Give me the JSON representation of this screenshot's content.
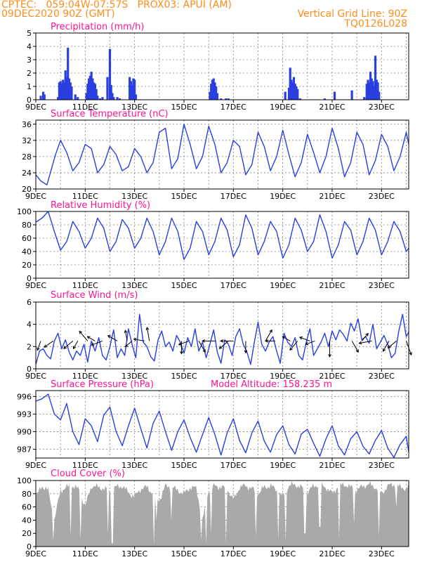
{
  "header": {
    "line1": "CPTEC:   059:04W-07:57S   PROX03: APUI (AM)",
    "line2": "09DEC2020 90Z (GMT)",
    "vgrid": "Vertical Grid Line: 90Z",
    "code": "TQ0126L028"
  },
  "colors": {
    "series": "#2a3fe0",
    "cloud": "#a9a9a9",
    "title": "#ff1493",
    "header": "#ff8c1a",
    "axis": "#000000",
    "grid": "#808080"
  },
  "x_ticks": [
    "9DEC",
    "11DEC",
    "13DEC",
    "15DEC",
    "17DEC",
    "19DEC",
    "21DEC",
    "23DEC"
  ],
  "x_tick_days": [
    9,
    11,
    13,
    15,
    17,
    19,
    21,
    23
  ],
  "x_range": [
    9,
    24.1
  ],
  "chart_data": [
    {
      "id": "precip",
      "type": "bar",
      "title": "Precipitation (mm/h)",
      "ylim": [
        0,
        5
      ],
      "yticks": [
        0,
        1,
        2,
        3,
        4,
        5
      ],
      "grid": true,
      "x": [
        9.2,
        9.3,
        9.35,
        9.9,
        9.95,
        10.0,
        10.05,
        10.1,
        10.15,
        10.2,
        10.25,
        10.3,
        10.35,
        10.4,
        10.45,
        10.6,
        10.7,
        11.05,
        11.1,
        11.15,
        11.2,
        11.25,
        11.3,
        11.35,
        11.4,
        11.45,
        11.5,
        11.6,
        11.7,
        11.9,
        12.0,
        12.05,
        12.1,
        12.15,
        12.3,
        12.4,
        12.8,
        12.85,
        12.9,
        12.95,
        13.0,
        13.05,
        16.05,
        16.1,
        16.15,
        16.2,
        16.25,
        16.3,
        16.35,
        16.5,
        16.7,
        16.8,
        19.1,
        19.25,
        19.3,
        19.35,
        19.4,
        19.45,
        19.5,
        19.55,
        19.6,
        19.7,
        20.7,
        21.1,
        21.8,
        22.3,
        22.4,
        22.45,
        22.5,
        22.55,
        22.6,
        22.65,
        22.7,
        22.75,
        22.8,
        22.85,
        22.9
      ],
      "values": [
        0.3,
        0.6,
        0.4,
        0.2,
        1.3,
        1.4,
        1.2,
        1.5,
        1.3,
        2.2,
        1.7,
        3.9,
        1.6,
        1.3,
        1.0,
        0.4,
        0.2,
        0.5,
        1.2,
        1.6,
        1.8,
        2.1,
        1.6,
        1.3,
        1.2,
        0.8,
        0.3,
        0.1,
        0.2,
        1.7,
        3.8,
        1.1,
        0.5,
        0.2,
        0.2,
        0.1,
        1.7,
        1.4,
        1.1,
        1.6,
        1.5,
        0.4,
        0.6,
        1.2,
        1.5,
        1.6,
        1.3,
        1.0,
        0.5,
        0.1,
        0.1,
        0.1,
        0.6,
        0.9,
        2.4,
        1.5,
        1.3,
        1.7,
        1.2,
        1.0,
        0.8,
        0.1,
        0.1,
        0.6,
        0.7,
        0.2,
        1.2,
        1.5,
        1.3,
        2.1,
        1.6,
        1.4,
        1.0,
        3.3,
        1.5,
        1.3,
        0.6
      ]
    },
    {
      "id": "temp",
      "type": "line",
      "title": "Surface Temperature (nC)",
      "ylim": [
        20,
        37
      ],
      "yticks": [
        20,
        24,
        28,
        32,
        36
      ],
      "grid": true,
      "x": [
        9.0,
        9.2,
        9.45,
        9.8,
        10.0,
        10.25,
        10.5,
        10.75,
        11.0,
        11.25,
        11.5,
        11.75,
        12.0,
        12.25,
        12.5,
        12.75,
        13.0,
        13.25,
        13.5,
        13.75,
        14.0,
        14.25,
        14.5,
        14.75,
        15.0,
        15.25,
        15.5,
        15.75,
        16.0,
        16.25,
        16.5,
        16.75,
        17.0,
        17.25,
        17.5,
        17.75,
        18.0,
        18.25,
        18.5,
        18.75,
        19.0,
        19.25,
        19.5,
        19.75,
        20.0,
        20.25,
        20.5,
        20.75,
        21.0,
        21.25,
        21.5,
        21.75,
        22.0,
        22.25,
        22.5,
        22.75,
        23.0,
        23.25,
        23.5,
        23.75,
        24.0,
        24.1
      ],
      "values": [
        23.5,
        22.0,
        21.0,
        28.5,
        32.0,
        29.0,
        24.5,
        26.5,
        31.0,
        30.0,
        24.0,
        26.0,
        30.5,
        28.5,
        24.5,
        25.5,
        30.0,
        28.0,
        24.0,
        26.5,
        34.0,
        35.0,
        25.0,
        27.5,
        36.0,
        31.0,
        25.0,
        28.0,
        35.5,
        31.0,
        24.0,
        26.5,
        32.0,
        30.5,
        23.5,
        26.0,
        34.0,
        30.5,
        24.5,
        28.0,
        34.5,
        28.5,
        23.0,
        26.5,
        33.5,
        29.0,
        24.0,
        28.0,
        35.0,
        30.0,
        23.0,
        26.5,
        34.0,
        31.0,
        23.5,
        27.0,
        33.5,
        30.5,
        24.5,
        28.0,
        34.0,
        31.0
      ]
    },
    {
      "id": "rh",
      "type": "line",
      "title": "Relative Humidity (%)",
      "ylim": [
        0,
        100
      ],
      "yticks": [
        0,
        20,
        40,
        60,
        80,
        100
      ],
      "grid": true,
      "x": [
        9.0,
        9.25,
        9.5,
        9.75,
        10.0,
        10.25,
        10.5,
        10.75,
        11.0,
        11.25,
        11.5,
        11.75,
        12.0,
        12.25,
        12.5,
        12.75,
        13.0,
        13.25,
        13.5,
        13.75,
        14.0,
        14.25,
        14.5,
        14.75,
        15.0,
        15.25,
        15.5,
        15.75,
        16.0,
        16.25,
        16.5,
        16.75,
        17.0,
        17.25,
        17.5,
        17.75,
        18.0,
        18.25,
        18.5,
        18.75,
        19.0,
        19.25,
        19.5,
        19.75,
        20.0,
        20.25,
        20.5,
        20.75,
        21.0,
        21.25,
        21.5,
        21.75,
        22.0,
        22.25,
        22.5,
        22.75,
        23.0,
        23.25,
        23.5,
        23.75,
        24.0,
        24.1
      ],
      "values": [
        84,
        90,
        100,
        70,
        42,
        55,
        85,
        70,
        45,
        60,
        90,
        75,
        40,
        55,
        88,
        75,
        45,
        60,
        90,
        70,
        35,
        55,
        90,
        70,
        28,
        45,
        85,
        70,
        35,
        55,
        90,
        72,
        32,
        50,
        95,
        75,
        35,
        55,
        85,
        70,
        30,
        50,
        90,
        72,
        40,
        55,
        95,
        70,
        30,
        50,
        85,
        72,
        35,
        55,
        90,
        72,
        35,
        55,
        85,
        70,
        40,
        45
      ]
    },
    {
      "id": "wind",
      "type": "line",
      "title": "Surface Wind (m/s)",
      "ylim": [
        0,
        6
      ],
      "yticks": [
        0,
        2,
        4,
        6
      ],
      "grid": true,
      "x": [
        9.0,
        9.15,
        9.3,
        9.45,
        9.6,
        9.75,
        9.9,
        10.05,
        10.2,
        10.35,
        10.5,
        10.65,
        10.8,
        10.95,
        11.1,
        11.25,
        11.4,
        11.55,
        11.7,
        11.85,
        12.0,
        12.15,
        12.3,
        12.45,
        12.6,
        12.75,
        12.9,
        13.05,
        13.2,
        13.35,
        13.5,
        13.65,
        13.8,
        13.95,
        14.1,
        14.25,
        14.4,
        14.55,
        14.7,
        14.85,
        15.0,
        15.15,
        15.3,
        15.45,
        15.6,
        15.75,
        15.9,
        16.05,
        16.2,
        16.35,
        16.5,
        16.65,
        16.8,
        16.95,
        17.1,
        17.25,
        17.4,
        17.55,
        17.7,
        17.85,
        18.0,
        18.15,
        18.3,
        18.45,
        18.6,
        18.75,
        18.9,
        19.05,
        19.2,
        19.35,
        19.5,
        19.65,
        19.8,
        19.95,
        20.1,
        20.25,
        20.4,
        20.55,
        20.7,
        20.85,
        21.0,
        21.15,
        21.3,
        21.45,
        21.6,
        21.75,
        21.9,
        22.05,
        22.2,
        22.35,
        22.5,
        22.65,
        22.8,
        22.95,
        23.1,
        23.25,
        23.4,
        23.55,
        23.7,
        23.85,
        24.0,
        24.1
      ],
      "values": [
        0.4,
        1.6,
        1.8,
        1.2,
        0.9,
        2.5,
        3.2,
        1.8,
        2.6,
        1.5,
        0.8,
        1.6,
        1.2,
        2.2,
        0.6,
        2.5,
        1.6,
        2.8,
        1.2,
        0.8,
        2.0,
        3.5,
        1.0,
        1.8,
        1.2,
        3.6,
        2.2,
        1.0,
        4.9,
        2.4,
        2.0,
        1.1,
        0.7,
        2.6,
        3.4,
        2.0,
        2.4,
        1.6,
        3.0,
        2.4,
        1.4,
        2.8,
        2.0,
        3.6,
        1.6,
        2.4,
        1.0,
        2.2,
        3.5,
        1.5,
        0.5,
        2.6,
        2.2,
        1.2,
        2.9,
        3.6,
        2.2,
        1.5,
        0.4,
        2.4,
        4.2,
        2.2,
        1.6,
        2.4,
        2.9,
        1.6,
        0.5,
        3.2,
        2.4,
        2.0,
        2.8,
        1.2,
        0.8,
        2.4,
        3.6,
        1.2,
        1.8,
        2.4,
        3.2,
        2.0,
        3.4,
        2.6,
        3.5,
        3.1,
        2.5,
        4.1,
        3.4,
        4.5,
        2.6,
        2.9,
        2.3,
        4.0,
        1.8,
        2.4,
        3.0,
        2.2,
        1.0,
        1.4,
        3.4,
        4.9,
        2.9,
        3.3
      ],
      "vectors": [
        {
          "day": 9.2,
          "angle": 200,
          "len": 1.0
        },
        {
          "day": 9.7,
          "angle": 235,
          "len": 1.1
        },
        {
          "day": 10.5,
          "angle": 230,
          "len": 1.2
        },
        {
          "day": 10.7,
          "angle": 210,
          "len": 0.9
        },
        {
          "day": 11.1,
          "angle": 320,
          "len": 1.3
        },
        {
          "day": 11.4,
          "angle": 300,
          "len": 0.9
        },
        {
          "day": 11.7,
          "angle": 250,
          "len": 1.2
        },
        {
          "day": 12.3,
          "angle": 300,
          "len": 1.1
        },
        {
          "day": 12.7,
          "angle": 350,
          "len": 1.1
        },
        {
          "day": 12.9,
          "angle": 230,
          "len": 0.9
        },
        {
          "day": 13.4,
          "angle": 280,
          "len": 1.1
        },
        {
          "day": 13.6,
          "angle": 350,
          "len": 1.4
        },
        {
          "day": 14.9,
          "angle": 180,
          "len": 1.3
        },
        {
          "day": 15.2,
          "angle": 250,
          "len": 1.1
        },
        {
          "day": 15.6,
          "angle": 150,
          "len": 1.3
        },
        {
          "day": 16.3,
          "angle": 270,
          "len": 1.4
        },
        {
          "day": 16.8,
          "angle": 230,
          "len": 1.2
        },
        {
          "day": 17.0,
          "angle": 270,
          "len": 1.3
        },
        {
          "day": 17.5,
          "angle": 180,
          "len": 1.2
        },
        {
          "day": 18.3,
          "angle": 30,
          "len": 1.3
        },
        {
          "day": 18.7,
          "angle": 270,
          "len": 1.0
        },
        {
          "day": 19.3,
          "angle": 300,
          "len": 0.9
        },
        {
          "day": 19.6,
          "angle": 220,
          "len": 1.2
        },
        {
          "day": 20.1,
          "angle": 290,
          "len": 1.1
        },
        {
          "day": 20.3,
          "angle": 250,
          "len": 1.0
        },
        {
          "day": 20.9,
          "angle": 180,
          "len": 1.6
        },
        {
          "day": 21.8,
          "angle": 150,
          "len": 1.3
        },
        {
          "day": 22.2,
          "angle": 40,
          "len": 1.0
        },
        {
          "day": 22.6,
          "angle": 260,
          "len": 1.3
        },
        {
          "day": 23.3,
          "angle": 210,
          "len": 1.2
        },
        {
          "day": 23.6,
          "angle": 230,
          "len": 1.1
        },
        {
          "day": 24.0,
          "angle": 160,
          "len": 1.5
        }
      ]
    },
    {
      "id": "pressure",
      "type": "line",
      "title": "Surface Pressure (hPa)",
      "annotation": "Model Altitude: 158.235 m",
      "ylim": [
        985.5,
        997
      ],
      "yticks": [
        987,
        990,
        993,
        996
      ],
      "grid": true,
      "x": [
        9.0,
        9.25,
        9.5,
        9.75,
        10.0,
        10.25,
        10.5,
        10.75,
        11.0,
        11.25,
        11.5,
        11.75,
        12.0,
        12.25,
        12.5,
        12.75,
        13.0,
        13.25,
        13.5,
        13.75,
        14.0,
        14.25,
        14.5,
        14.75,
        15.0,
        15.25,
        15.5,
        15.75,
        16.0,
        16.25,
        16.5,
        16.75,
        17.0,
        17.25,
        17.5,
        17.75,
        18.0,
        18.25,
        18.5,
        18.75,
        19.0,
        19.25,
        19.5,
        19.75,
        20.0,
        20.25,
        20.5,
        20.75,
        21.0,
        21.25,
        21.5,
        21.75,
        22.0,
        22.25,
        22.5,
        22.75,
        23.0,
        23.25,
        23.5,
        23.75,
        24.0,
        24.1
      ],
      "values": [
        995.2,
        995.6,
        996.4,
        993.0,
        992.0,
        994.8,
        990.0,
        987.8,
        992.2,
        991.0,
        988.3,
        992.8,
        994.2,
        990.0,
        987.6,
        991.0,
        994.0,
        990.5,
        987.2,
        991.4,
        993.5,
        990.0,
        986.8,
        990.0,
        992.0,
        989.0,
        986.5,
        989.5,
        992.4,
        989.5,
        986.0,
        989.8,
        992.2,
        988.5,
        986.4,
        989.8,
        991.8,
        988.4,
        986.5,
        989.5,
        991.0,
        987.8,
        986.2,
        989.6,
        990.4,
        988.0,
        985.8,
        988.8,
        991.0,
        987.6,
        986.0,
        988.8,
        990.0,
        987.5,
        986.2,
        988.5,
        990.2,
        987.2,
        985.6,
        987.8,
        989.2,
        986.5
      ]
    },
    {
      "id": "cloud",
      "type": "area",
      "title": "Cloud Cover (%)",
      "ylim": [
        0,
        100
      ],
      "yticks": [
        0,
        20,
        40,
        60,
        80,
        100
      ],
      "grid": true,
      "x": [
        9.0,
        9.25,
        9.5,
        9.75,
        10.0,
        10.25,
        10.5,
        10.75,
        11.0,
        11.25,
        11.5,
        11.75,
        12.0,
        12.25,
        12.5,
        12.75,
        13.0,
        13.25,
        13.5,
        13.75,
        14.0,
        14.25,
        14.5,
        14.75,
        15.0,
        15.25,
        15.5,
        15.75,
        16.0,
        16.25,
        16.5,
        16.75,
        17.0,
        17.25,
        17.5,
        17.75,
        18.0,
        18.25,
        18.5,
        18.75,
        19.0,
        19.25,
        19.5,
        19.75,
        20.0,
        20.25,
        20.5,
        20.75,
        21.0,
        21.25,
        21.5,
        21.75,
        22.0,
        22.25,
        22.5,
        22.75,
        23.0,
        23.25,
        23.5,
        23.75,
        24.0,
        24.1
      ],
      "values": [
        75,
        92,
        85,
        40,
        85,
        90,
        92,
        86,
        60,
        92,
        90,
        88,
        85,
        90,
        92,
        82,
        75,
        88,
        90,
        80,
        70,
        92,
        90,
        85,
        80,
        90,
        88,
        40,
        85,
        92,
        90,
        88,
        70,
        90,
        92,
        88,
        80,
        90,
        92,
        86,
        75,
        92,
        94,
        90,
        82,
        92,
        94,
        90,
        80,
        92,
        94,
        90,
        85,
        92,
        94,
        90,
        80,
        92,
        94,
        90,
        88,
        92
      ],
      "dips": [
        {
          "day": 9.7,
          "value": 8
        },
        {
          "day": 10.4,
          "value": 15
        },
        {
          "day": 10.8,
          "value": 10
        },
        {
          "day": 11.9,
          "value": 20
        },
        {
          "day": 12.1,
          "value": 5
        },
        {
          "day": 13.8,
          "value": 2
        },
        {
          "day": 13.9,
          "value": 40
        },
        {
          "day": 14.5,
          "value": 40
        },
        {
          "day": 15.7,
          "value": 10
        },
        {
          "day": 15.9,
          "value": 5
        },
        {
          "day": 16.1,
          "value": 20
        },
        {
          "day": 16.7,
          "value": 5
        },
        {
          "day": 17.9,
          "value": 15
        },
        {
          "day": 18.8,
          "value": 10
        },
        {
          "day": 19.1,
          "value": 8
        },
        {
          "day": 19.9,
          "value": 20
        },
        {
          "day": 20.5,
          "value": 30
        },
        {
          "day": 21.3,
          "value": 12
        },
        {
          "day": 21.9,
          "value": 35
        },
        {
          "day": 22.9,
          "value": 15
        },
        {
          "day": 23.6,
          "value": 60
        }
      ]
    }
  ]
}
